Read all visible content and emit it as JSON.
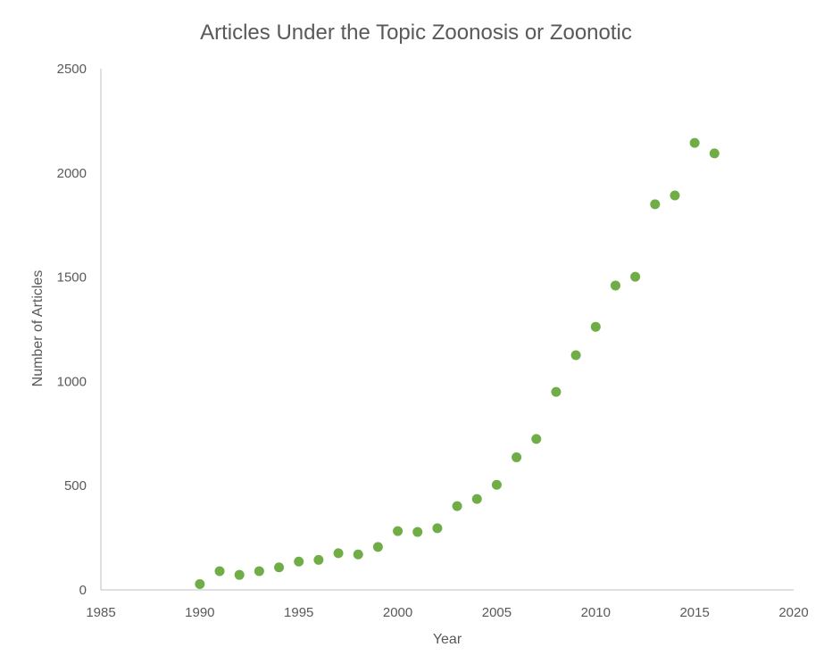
{
  "chart_data": {
    "type": "scatter",
    "title": "Articles Under the Topic Zoonosis or Zoonotic",
    "xlabel": "Year",
    "ylabel": "Number of Articles",
    "xlim": [
      1985,
      2020
    ],
    "ylim": [
      0,
      2500
    ],
    "xticks": [
      "1985",
      "1990",
      "1995",
      "2000",
      "2005",
      "2010",
      "2015",
      "2020"
    ],
    "yticks": [
      "0",
      "500",
      "1000",
      "1500",
      "2000",
      "2500"
    ],
    "grid": false,
    "legend": "none",
    "marker_color": "#70ad47",
    "axis_color": "#bfbfbf",
    "text_color": "#595959",
    "series": [
      {
        "x": [
          1990,
          1991,
          1992,
          1993,
          1994,
          1995,
          1996,
          1997,
          1998,
          1999,
          2000,
          2001,
          2002,
          2003,
          2004,
          2005,
          2006,
          2007,
          2008,
          2009,
          2010,
          2011,
          2012,
          2013,
          2014,
          2015,
          2016
        ],
        "y": [
          28,
          90,
          72,
          90,
          108,
          136,
          144,
          176,
          170,
          206,
          282,
          278,
          296,
          402,
          436,
          504,
          636,
          724,
          950,
          1126,
          1262,
          1460,
          1502,
          1850,
          1892,
          2144,
          2094
        ]
      }
    ]
  }
}
